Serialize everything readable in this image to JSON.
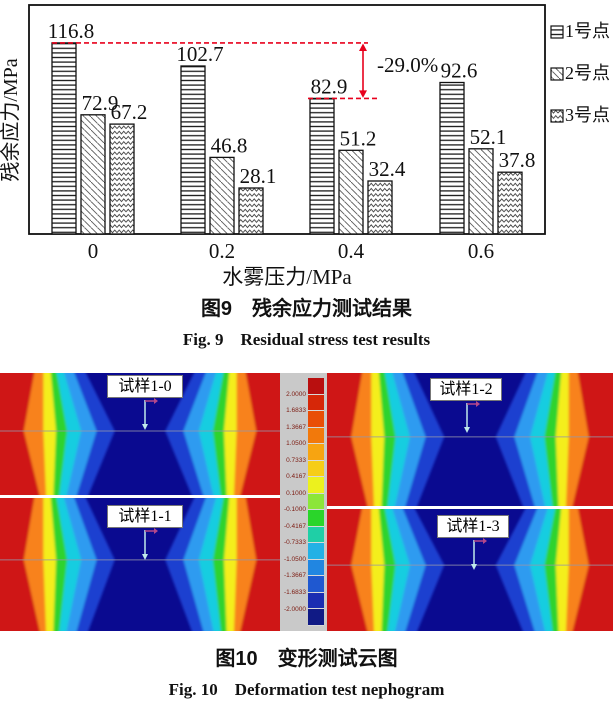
{
  "figure9": {
    "caption_cn": "图9　残余应力测试结果",
    "caption_en": "Fig. 9　Residual stress test results"
  },
  "chart_data": {
    "type": "bar",
    "title": "残余应力测试结果",
    "xlabel": "水雾压力/MPa",
    "ylabel": "残余应力/MPa",
    "categories": [
      "0",
      "0.2",
      "0.4",
      "0.6"
    ],
    "series": [
      {
        "name": "1号点",
        "pattern": "horizontal-lines",
        "values": [
          116.8,
          102.7,
          82.9,
          92.6
        ]
      },
      {
        "name": "2号点",
        "pattern": "diagonal-lines",
        "values": [
          72.9,
          46.8,
          51.2,
          52.1
        ]
      },
      {
        "name": "3号点",
        "pattern": "zigzag-lines",
        "values": [
          67.2,
          28.1,
          32.4,
          37.8
        ]
      }
    ],
    "ylim": [
      0,
      140
    ],
    "grid": false,
    "legend_position": "right-outside",
    "bar_value_labels_shown": true,
    "annotation": {
      "text": "-29.0%",
      "from_value": 116.8,
      "to_value": 82.9,
      "color": "#e8001c"
    }
  },
  "figure10": {
    "caption_cn": "图10　变形测试云图",
    "caption_en": "Fig. 10　Deformation test nephogram",
    "panels": [
      {
        "label": "试样1-0"
      },
      {
        "label": "试样1-2"
      },
      {
        "label": "试样1-1"
      },
      {
        "label": "试样1-3"
      }
    ],
    "colorbar": {
      "labels": [
        "2.0000",
        "1.6833",
        "1.3667",
        "1.0500",
        "0.7333",
        "0.4167",
        "0.1000",
        "-0.1000",
        "-0.4167",
        "-0.7333",
        "-1.0500",
        "-1.3667",
        "-1.6833",
        "-2.0000"
      ],
      "colors": [
        "#b90f0f",
        "#d62708",
        "#e94e06",
        "#f2790b",
        "#f7a411",
        "#f6cd18",
        "#ecf11e",
        "#8ce639",
        "#2ad52a",
        "#1fcfa6",
        "#23b1e5",
        "#2186e1",
        "#1f58d0",
        "#1a2db2",
        "#101a85"
      ],
      "background": "#c9c9c9",
      "label_color": "#7c1a10"
    },
    "nephogram_colors": {
      "background": "#0a0a90",
      "bands_outer_to_inner": [
        "#cf1616",
        "#f8821a",
        "#f4ee1a",
        "#2fd32f",
        "#19cde0",
        "#2e9bf0",
        "#1f3fd0"
      ]
    }
  }
}
